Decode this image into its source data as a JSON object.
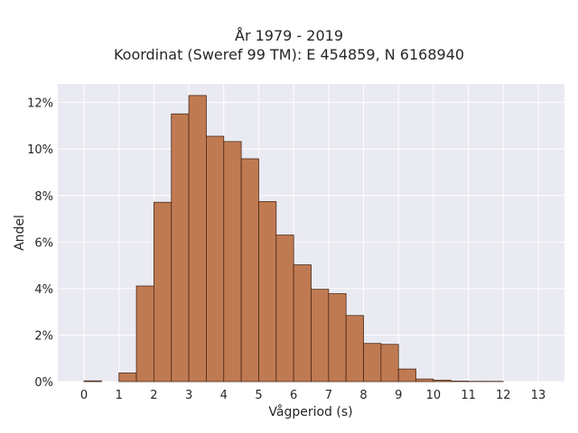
{
  "chart_data": {
    "type": "bar",
    "title_lines": [
      "År 1979 - 2019",
      "Koordinat (Sweref 99 TM): E 454859, N 6168940"
    ],
    "xlabel": "Vågperiod (s)",
    "ylabel": "Andel",
    "xlim": [
      -0.75,
      13.75
    ],
    "ylim": [
      0,
      0.128
    ],
    "x_ticks": [
      "0",
      "1",
      "2",
      "3",
      "4",
      "5",
      "6",
      "7",
      "8",
      "9",
      "10",
      "11",
      "12",
      "13"
    ],
    "y_ticks": [
      "0%",
      "2%",
      "4%",
      "6%",
      "8%",
      "10%",
      "12%"
    ],
    "y_tick_values": [
      0,
      0.02,
      0.04,
      0.06,
      0.08,
      0.1,
      0.12
    ],
    "bin_width": 0.5,
    "bins": [
      {
        "start": 0.0,
        "value": 0.0003
      },
      {
        "start": 0.5,
        "value": 0.0
      },
      {
        "start": 1.0,
        "value": 0.0037
      },
      {
        "start": 1.5,
        "value": 0.0411
      },
      {
        "start": 2.0,
        "value": 0.0771
      },
      {
        "start": 2.5,
        "value": 0.1151
      },
      {
        "start": 3.0,
        "value": 0.123
      },
      {
        "start": 3.5,
        "value": 0.1055
      },
      {
        "start": 4.0,
        "value": 0.1032
      },
      {
        "start": 4.5,
        "value": 0.0958
      },
      {
        "start": 5.0,
        "value": 0.0774
      },
      {
        "start": 5.5,
        "value": 0.063
      },
      {
        "start": 6.0,
        "value": 0.0502
      },
      {
        "start": 6.5,
        "value": 0.0397
      },
      {
        "start": 7.0,
        "value": 0.0378
      },
      {
        "start": 7.5,
        "value": 0.0284
      },
      {
        "start": 8.0,
        "value": 0.0164
      },
      {
        "start": 8.5,
        "value": 0.016
      },
      {
        "start": 9.0,
        "value": 0.0054
      },
      {
        "start": 9.5,
        "value": 0.0011
      },
      {
        "start": 10.0,
        "value": 0.0006
      },
      {
        "start": 10.5,
        "value": 0.0002
      },
      {
        "start": 11.0,
        "value": 0.0001
      },
      {
        "start": 11.5,
        "value": 0.0001
      }
    ],
    "grid": true,
    "colors": {
      "bar_fill": "#c07a52",
      "bar_edge": "#4a2a18",
      "plot_background": "#eaeaf2",
      "grid": "#ffffff"
    }
  }
}
